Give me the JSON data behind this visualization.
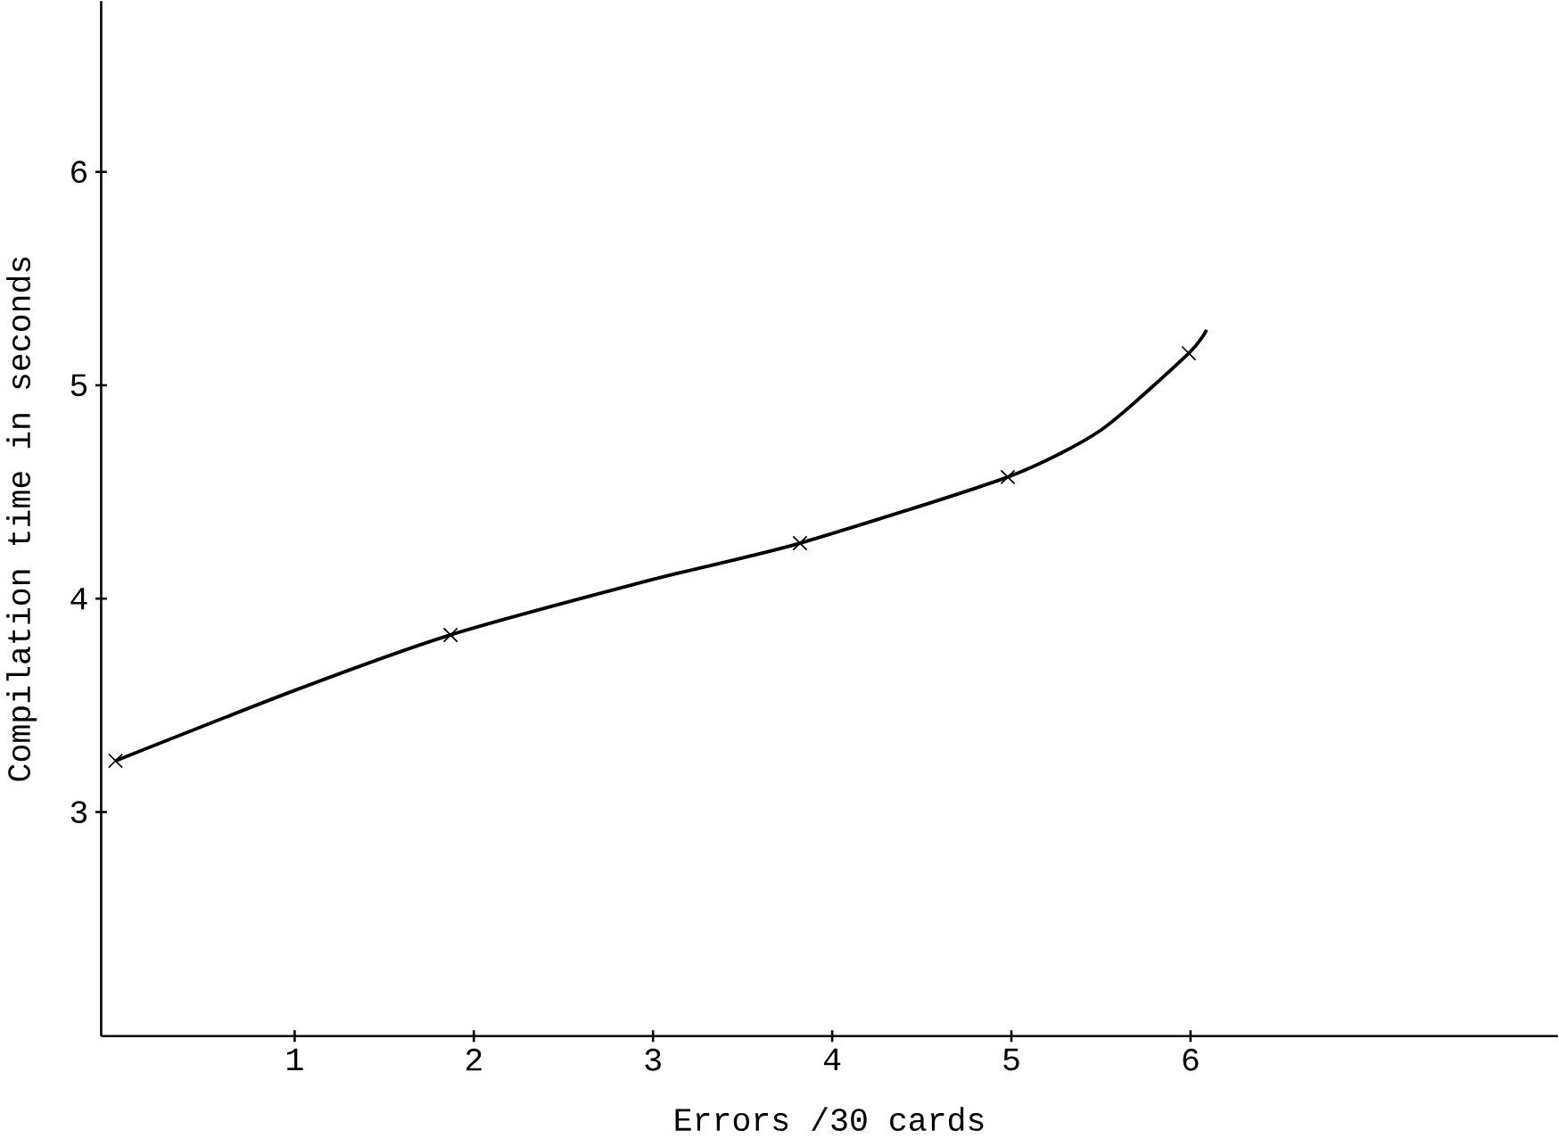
{
  "chart_data": {
    "type": "line",
    "xlabel": "Errors /30 cards",
    "ylabel": "Compilation time in seconds",
    "xlim": [
      -0.08,
      8.05
    ],
    "ylim": [
      1.95,
      6.8
    ],
    "xticks": [
      1,
      2,
      3,
      4,
      5,
      6
    ],
    "yticks": [
      3,
      4,
      5,
      6
    ],
    "grid": false,
    "series": [
      {
        "color": "#000000",
        "marker": "none",
        "x": [
          0,
          1,
          1.87,
          3,
          3.82,
          4.98,
          5.5,
          5.99,
          6.09
        ],
        "values": [
          3.24,
          3.57,
          3.83,
          4.09,
          4.26,
          4.57,
          4.79,
          5.15,
          5.26
        ]
      },
      {
        "type": "scatter",
        "color": "#000000",
        "marker": "cross",
        "x": [
          0,
          1.87,
          3.82,
          4.98,
          5.99
        ],
        "values": [
          3.24,
          3.83,
          4.26,
          4.57,
          5.15
        ]
      }
    ]
  }
}
